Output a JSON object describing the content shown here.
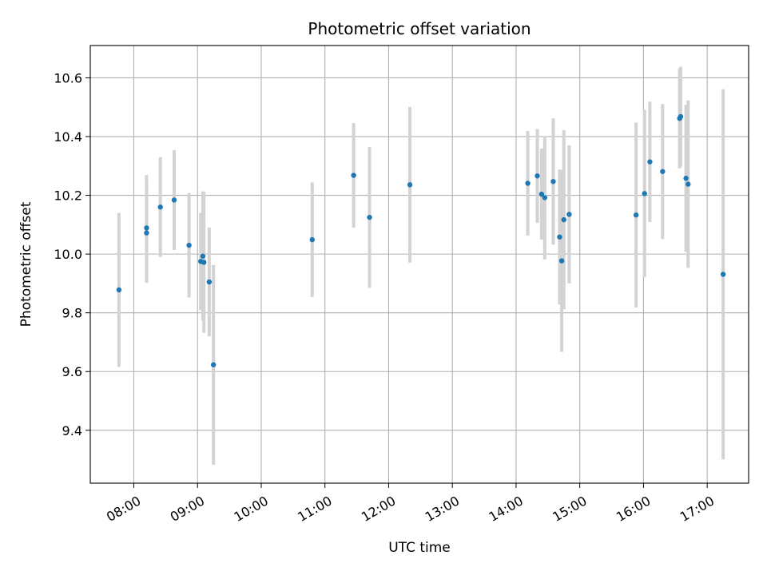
{
  "chart_data": {
    "type": "scatter",
    "title": "Photometric offset variation",
    "xlabel": "UTC time",
    "ylabel": "Photometric offset",
    "x_axis": "time",
    "xlim": [
      "07:19",
      "17:39"
    ],
    "ylim": [
      9.22,
      10.71
    ],
    "x_ticks": [
      "08:00",
      "09:00",
      "10:00",
      "11:00",
      "12:00",
      "13:00",
      "14:00",
      "15:00",
      "16:00",
      "17:00"
    ],
    "y_ticks": [
      9.4,
      9.6,
      9.8,
      10.0,
      10.2,
      10.4,
      10.6
    ],
    "y_tick_labels": [
      "9.4",
      "9.6",
      "9.8",
      "10.0",
      "10.2",
      "10.4",
      "10.6"
    ],
    "x_tick_rotation": 30,
    "grid": true,
    "colors": {
      "marker": "#1f77b4",
      "errorbar": "#d3d3d3",
      "grid": "#b0b0b0"
    },
    "points": [
      {
        "time": "07:46",
        "y": 9.878,
        "err": 0.262
      },
      {
        "time": "08:12",
        "y": 10.089,
        "err": 0.18
      },
      {
        "time": "08:12",
        "y": 10.072,
        "err": 0.17
      },
      {
        "time": "08:25",
        "y": 10.16,
        "err": 0.17
      },
      {
        "time": "08:38",
        "y": 10.184,
        "err": 0.17
      },
      {
        "time": "08:52",
        "y": 10.03,
        "err": 0.178
      },
      {
        "time": "09:03",
        "y": 9.975,
        "err": 0.165
      },
      {
        "time": "09:05",
        "y": 9.993,
        "err": 0.22
      },
      {
        "time": "09:06",
        "y": 9.972,
        "err": 0.24
      },
      {
        "time": "09:11",
        "y": 9.905,
        "err": 0.185
      },
      {
        "time": "09:15",
        "y": 9.623,
        "err": 0.34
      },
      {
        "time": "10:48",
        "y": 10.049,
        "err": 0.195
      },
      {
        "time": "11:27",
        "y": 10.268,
        "err": 0.178
      },
      {
        "time": "11:42",
        "y": 10.125,
        "err": 0.24
      },
      {
        "time": "12:20",
        "y": 10.236,
        "err": 0.265
      },
      {
        "time": "14:11",
        "y": 10.241,
        "err": 0.178
      },
      {
        "time": "14:20",
        "y": 10.266,
        "err": 0.16
      },
      {
        "time": "14:24",
        "y": 10.204,
        "err": 0.155
      },
      {
        "time": "14:27",
        "y": 10.192,
        "err": 0.21
      },
      {
        "time": "14:35",
        "y": 10.247,
        "err": 0.215
      },
      {
        "time": "14:41",
        "y": 10.058,
        "err": 0.23
      },
      {
        "time": "14:43",
        "y": 9.977,
        "err": 0.31
      },
      {
        "time": "14:45",
        "y": 10.117,
        "err": 0.305
      },
      {
        "time": "14:50",
        "y": 10.135,
        "err": 0.235
      },
      {
        "time": "15:53",
        "y": 10.133,
        "err": 0.315
      },
      {
        "time": "16:01",
        "y": 10.206,
        "err": 0.285
      },
      {
        "time": "16:06",
        "y": 10.314,
        "err": 0.205
      },
      {
        "time": "16:18",
        "y": 10.281,
        "err": 0.23
      },
      {
        "time": "16:34",
        "y": 10.462,
        "err": 0.17
      },
      {
        "time": "16:35",
        "y": 10.468,
        "err": 0.17
      },
      {
        "time": "16:40",
        "y": 10.258,
        "err": 0.25
      },
      {
        "time": "16:42",
        "y": 10.238,
        "err": 0.285
      },
      {
        "time": "17:15",
        "y": 9.931,
        "err": 0.63
      }
    ]
  }
}
